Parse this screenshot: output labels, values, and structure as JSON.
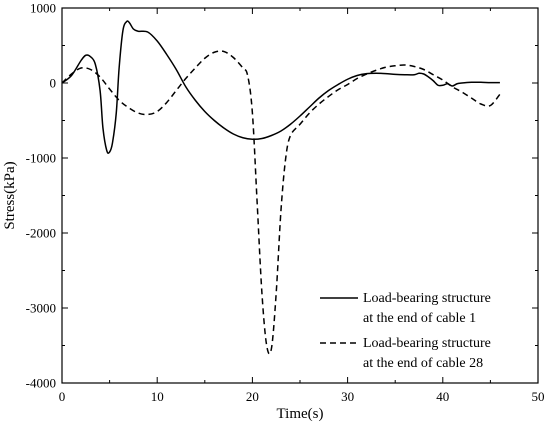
{
  "chart_data": {
    "type": "line",
    "xlabel": "Time(s)",
    "ylabel": "Stress(kPa)",
    "xlim": [
      0,
      50
    ],
    "ylim": [
      -4000,
      1000
    ],
    "xticks": [
      0,
      10,
      20,
      30,
      40,
      50
    ],
    "yticks": [
      1000,
      0,
      -1000,
      -2000,
      -3000,
      -4000
    ],
    "grid": false,
    "legend_position": "bottom-right",
    "series": [
      {
        "name": "Load-bearing structure at the end of cable 1",
        "legend_lines": [
          "Load-bearing structure",
          "at the end of cable 1"
        ],
        "dash": "solid",
        "x": [
          0,
          1,
          2,
          2.5,
          3,
          3.5,
          4,
          4.3,
          4.7,
          5.0,
          5.3,
          5.7,
          6.0,
          6.4,
          6.8,
          7.1,
          7.5,
          8.0,
          9.0,
          10,
          11,
          12,
          13,
          14,
          15,
          16,
          17,
          18,
          19,
          20,
          21,
          22,
          23,
          24,
          25,
          26,
          27,
          28,
          29,
          30,
          31,
          32,
          33,
          34,
          35,
          36,
          37,
          37.5,
          38,
          38.5,
          39,
          39.5,
          40,
          40.5,
          41,
          41.5,
          42,
          43,
          44,
          45,
          46
        ],
        "y": [
          0,
          100,
          300,
          370,
          350,
          250,
          -100,
          -600,
          -900,
          -920,
          -800,
          -400,
          200,
          700,
          820,
          800,
          720,
          690,
          680,
          560,
          380,
          180,
          -50,
          -230,
          -380,
          -500,
          -600,
          -680,
          -730,
          -750,
          -740,
          -700,
          -640,
          -550,
          -440,
          -320,
          -200,
          -100,
          -20,
          50,
          100,
          125,
          130,
          125,
          115,
          110,
          110,
          130,
          120,
          80,
          30,
          -30,
          -30,
          -10,
          -40,
          -10,
          0,
          10,
          10,
          5,
          5
        ]
      },
      {
        "name": "Load-bearing structure at the end of cable 28",
        "legend_lines": [
          "Load-bearing structure",
          "at the end of cable 28"
        ],
        "dash": "dashed",
        "x": [
          0,
          1,
          2,
          3,
          4,
          5,
          6,
          7,
          8,
          9,
          10,
          11,
          12,
          13,
          14,
          15,
          16,
          17,
          18,
          19,
          19.5,
          20,
          20.5,
          21,
          21.5,
          22,
          22.5,
          23,
          23.5,
          24,
          25,
          26,
          27,
          28,
          29,
          30,
          31,
          32,
          33,
          34,
          35,
          36,
          37,
          38,
          39,
          40,
          41,
          42,
          43,
          44,
          45,
          46
        ],
        "y": [
          0,
          120,
          200,
          180,
          80,
          -80,
          -230,
          -330,
          -400,
          -420,
          -380,
          -260,
          -100,
          60,
          200,
          330,
          410,
          420,
          340,
          200,
          100,
          -400,
          -1600,
          -2800,
          -3500,
          -3540,
          -2800,
          -1700,
          -1000,
          -700,
          -550,
          -400,
          -280,
          -180,
          -90,
          -20,
          60,
          120,
          170,
          210,
          230,
          240,
          220,
          180,
          110,
          40,
          -50,
          -120,
          -200,
          -280,
          -300,
          -150
        ]
      }
    ]
  }
}
